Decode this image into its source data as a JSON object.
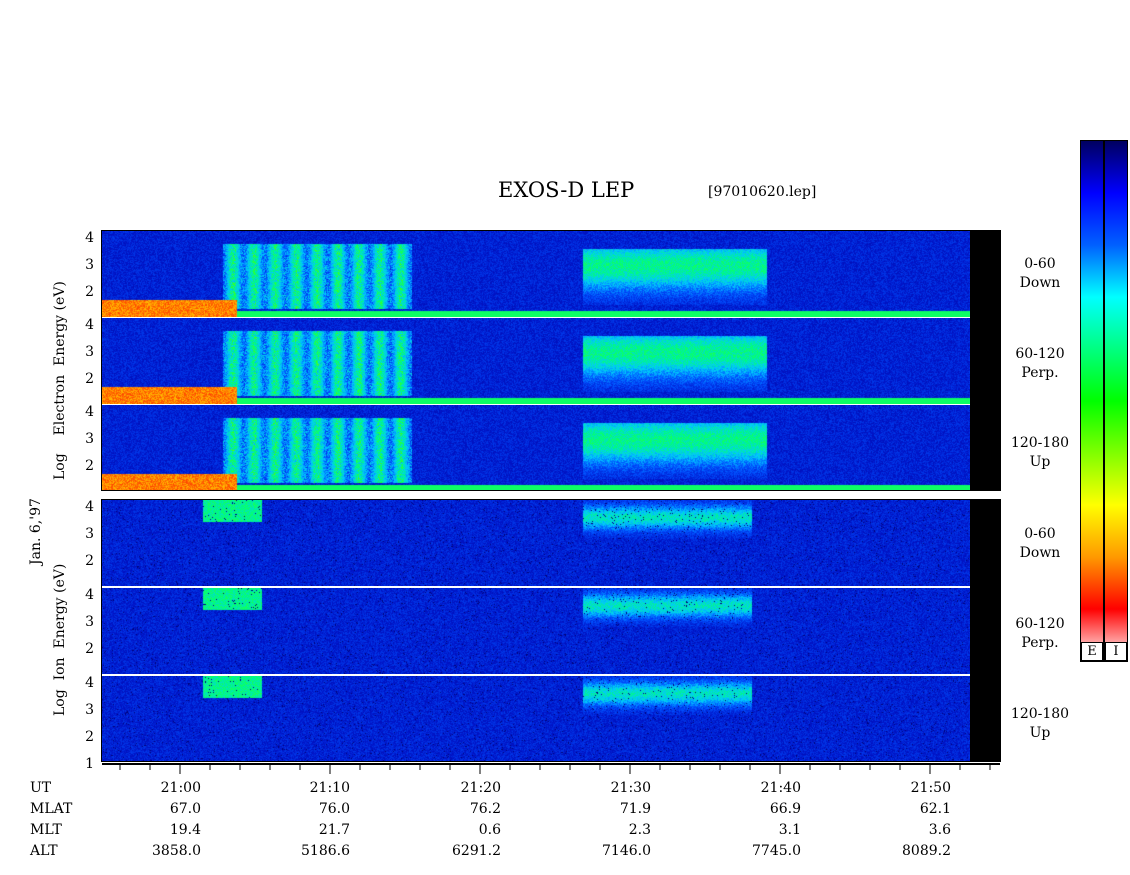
{
  "header": {
    "title": "EXOS-D LEP",
    "file": "[97010620.lep]"
  },
  "date_label": "Jan. 6,'97",
  "electron_axis_label": [
    "Log",
    "Electron",
    "Energy (eV)"
  ],
  "ion_axis_label": [
    "Log",
    "Ion",
    "Energy (eV)"
  ],
  "panels": [
    {
      "group": "electron",
      "angle": "0-60",
      "dir": "Down"
    },
    {
      "group": "electron",
      "angle": "60-120",
      "dir": "Perp."
    },
    {
      "group": "electron",
      "angle": "120-180",
      "dir": "Up"
    },
    {
      "group": "ion",
      "angle": "0-60",
      "dir": "Down"
    },
    {
      "group": "ion",
      "angle": "60-120",
      "dir": "Perp."
    },
    {
      "group": "ion",
      "angle": "120-180",
      "dir": "Up"
    }
  ],
  "y_ticks": [
    "4",
    "3",
    "2"
  ],
  "y_ticks_bottom_panel": [
    "4",
    "3",
    "2",
    "1"
  ],
  "footer": {
    "row_labels": [
      "UT",
      "MLAT",
      "MLT",
      "ALT"
    ],
    "columns": [
      {
        "UT": "21:00",
        "MLAT": "67.0",
        "MLT": "19.4",
        "ALT": "3858.0"
      },
      {
        "UT": "21:10",
        "MLAT": "76.0",
        "MLT": "21.7",
        "ALT": "5186.6"
      },
      {
        "UT": "21:20",
        "MLAT": "76.2",
        "MLT": "0.6",
        "ALT": "6291.2"
      },
      {
        "UT": "21:30",
        "MLAT": "71.9",
        "MLT": "2.3",
        "ALT": "7146.0"
      },
      {
        "UT": "21:40",
        "MLAT": "66.9",
        "MLT": "3.1",
        "ALT": "7745.0"
      },
      {
        "UT": "21:50",
        "MLAT": "62.1",
        "MLT": "3.6",
        "ALT": "8089.2"
      }
    ]
  },
  "colorbars": [
    {
      "label": "E"
    },
    {
      "label": "I"
    }
  ],
  "chart_data": {
    "type": "heatmap",
    "title": "EXOS-D LEP",
    "subtitle": "[97010620.lep]",
    "xlabel": "UT",
    "x_ticks": [
      "21:00",
      "21:10",
      "21:20",
      "21:30",
      "21:40",
      "21:50"
    ],
    "y_ticks": [
      1,
      2,
      3,
      4
    ],
    "color_scale": [
      "#ffffff",
      "#ff0000",
      "#ffff00",
      "#00ff00",
      "#00ffff",
      "#0000ff",
      "#000066"
    ]
  }
}
